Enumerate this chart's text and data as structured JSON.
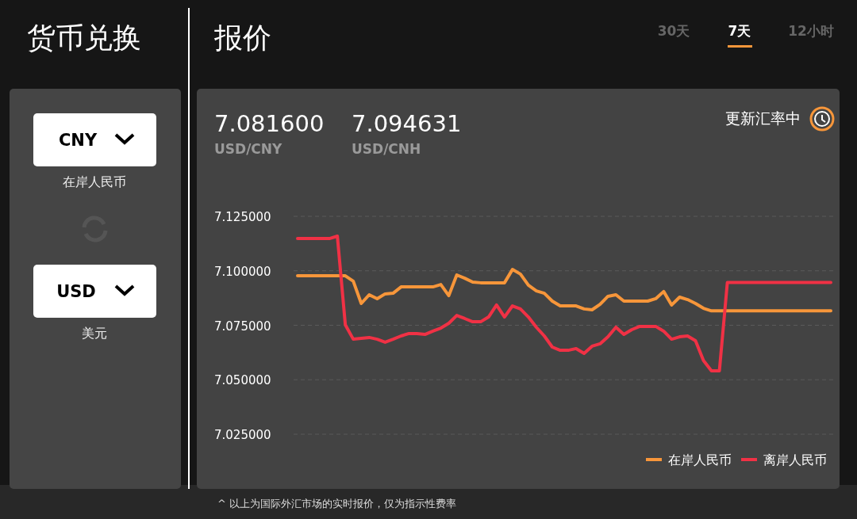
{
  "chart_data": {
    "type": "line",
    "title": "报价",
    "annotations": [
      "货币兑换",
      "30天",
      "7天",
      "12小时",
      "7.081600",
      "USD/CNY",
      "7.094631",
      "USD/CNH",
      "更新汇率中",
      "CNY",
      "在岸人民币",
      "USD",
      "美元",
      "^ 以上为国际外汇市场的实时报价，仅为指示性费率"
    ],
    "categories": [
      null,
      null,
      null,
      null,
      null,
      null,
      null,
      null,
      null,
      null,
      null,
      null,
      null,
      null,
      null,
      null,
      null,
      null,
      null,
      null,
      null,
      null,
      null,
      null,
      null,
      null,
      null,
      null,
      null,
      null,
      null,
      null,
      null,
      null,
      null,
      null,
      null,
      null,
      null,
      null,
      null,
      null,
      null,
      null,
      null,
      null,
      null,
      null,
      null,
      null,
      null,
      null,
      null,
      null,
      null,
      null,
      null,
      null,
      null,
      null,
      null,
      null,
      null,
      null,
      null,
      null,
      null,
      null
    ],
    "series": [
      {
        "name": "在岸人民币",
        "color": "#f7963a",
        "values": [
          7.0977,
          7.0977,
          7.0977,
          7.0977,
          7.0977,
          7.0977,
          7.0977,
          7.0952,
          7.085,
          7.089,
          7.0872,
          7.0894,
          7.0897,
          7.0926,
          7.0926,
          7.0926,
          7.0926,
          7.0926,
          7.0937,
          7.0886,
          7.0981,
          7.0966,
          7.0948,
          7.0945,
          7.0945,
          7.0945,
          7.0945,
          7.1006,
          7.0985,
          7.0934,
          7.0908,
          7.0897,
          7.0861,
          7.0839,
          7.0839,
          7.0839,
          7.0825,
          7.0821,
          7.0846,
          7.0883,
          7.089,
          7.0861,
          7.0861,
          7.0861,
          7.0861,
          7.0872,
          7.0905,
          7.0843,
          7.0879,
          7.0868,
          7.085,
          7.0828,
          7.0816,
          7.0816,
          7.0816,
          7.0816,
          7.0816,
          7.0816,
          7.0816,
          7.0816,
          7.0816,
          7.0816,
          7.0816,
          7.0816,
          7.0816,
          7.0816,
          7.0816,
          7.0816
        ]
      },
      {
        "name": "离岸人民币",
        "color": "#f03145",
        "values": [
          7.1148,
          7.1148,
          7.1148,
          7.1148,
          7.1148,
          7.1159,
          7.0752,
          7.0686,
          7.069,
          7.0694,
          7.0686,
          7.0672,
          7.0686,
          7.0701,
          7.0712,
          7.0712,
          7.0708,
          7.0723,
          7.0737,
          7.0759,
          7.0795,
          7.0781,
          7.0766,
          7.0766,
          7.0788,
          7.0843,
          7.0788,
          7.0839,
          7.0825,
          7.0788,
          7.0741,
          7.0701,
          7.065,
          7.0635,
          7.0635,
          7.0643,
          7.0621,
          7.0654,
          7.0665,
          7.0697,
          7.0741,
          7.0708,
          7.073,
          7.0745,
          7.0745,
          7.0745,
          7.0723,
          7.0686,
          7.0697,
          7.0701,
          7.0679,
          7.0588,
          7.0541,
          7.0541,
          7.0946,
          7.0946,
          7.0946,
          7.0946,
          7.0946,
          7.0946,
          7.0946,
          7.0946,
          7.0946,
          7.0946,
          7.0946,
          7.0946,
          7.0946,
          7.0946
        ]
      }
    ],
    "ylim": [
      7.025,
      7.125
    ],
    "yticks": [
      {
        "value": 7.125,
        "label": "7.125000"
      },
      {
        "value": 7.1,
        "label": "7.100000"
      },
      {
        "value": 7.075,
        "label": "7.075000"
      },
      {
        "value": 7.05,
        "label": "7.050000"
      },
      {
        "value": 7.025,
        "label": "7.025000"
      }
    ],
    "grid": "y",
    "legend": "bottom right",
    "marker": "none",
    "line_style": "solid"
  }
}
